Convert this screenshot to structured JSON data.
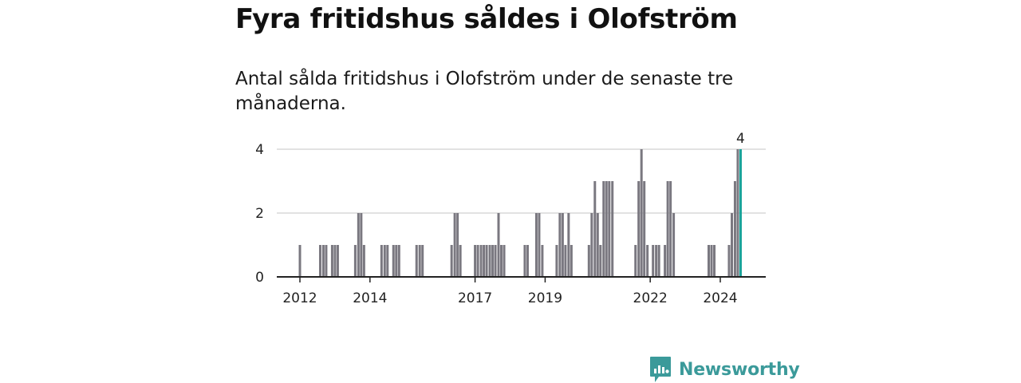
{
  "title": "Fyra fritidshus såldes i Olofström",
  "subtitle": "Antal sålda fritidshus i Olofström under de senaste tre månaderna.",
  "brand": {
    "name": "Newsworthy",
    "icon": "newsworthy-logo-icon"
  },
  "colors": {
    "bar": "#7a7880",
    "highlight": "#1aa39a",
    "grid": "#d9d9d9",
    "axis": "#222222"
  },
  "chart_data": {
    "type": "bar",
    "title": "Fyra fritidshus såldes i Olofström",
    "subtitle": "Antal sålda fritidshus i Olofström under de senaste tre månaderna.",
    "xlabel": "",
    "ylabel": "",
    "ylim": [
      0,
      4
    ],
    "yticks": [
      0,
      2,
      4
    ],
    "grid": true,
    "xlim": [
      2011.6,
      2025.9
    ],
    "xticks": [
      2012,
      2014,
      2017,
      2019,
      2022,
      2024
    ],
    "series": [
      {
        "x": [
          2012.0,
          2012.58,
          2012.67,
          2012.75,
          2012.92,
          2013.0,
          2013.08
        ],
        "values": [
          1,
          1,
          1,
          1,
          1,
          1,
          1
        ]
      },
      {
        "x": [
          2013.58,
          2013.67,
          2013.75,
          2013.83,
          2014.33,
          2014.42,
          2014.5,
          2014.67,
          2014.75,
          2014.83,
          2015.33,
          2015.42,
          2015.5
        ],
        "values": [
          1,
          2,
          2,
          1,
          1,
          1,
          1,
          1,
          1,
          1,
          1,
          1,
          1
        ]
      },
      {
        "x": [
          2016.33,
          2016.42,
          2016.5,
          2016.58,
          2017.0,
          2017.08,
          2017.17,
          2017.25,
          2017.33,
          2017.42,
          2017.5,
          2017.58,
          2017.67,
          2017.75,
          2017.83
        ],
        "values": [
          1,
          2,
          2,
          1,
          1,
          1,
          1,
          1,
          1,
          1,
          1,
          1,
          2,
          1,
          1
        ]
      },
      {
        "x": [
          2018.42,
          2018.5,
          2018.75,
          2018.83,
          2018.92,
          2019.33,
          2019.42,
          2019.5,
          2019.58,
          2019.67,
          2019.75,
          2020.25,
          2020.33,
          2020.42,
          2020.5,
          2020.58,
          2020.67,
          2020.75,
          2020.83,
          2020.92
        ],
        "values": [
          1,
          1,
          2,
          2,
          1,
          1,
          2,
          2,
          1,
          2,
          1,
          1,
          2,
          3,
          2,
          1,
          3,
          3,
          3,
          3
        ]
      },
      {
        "x": [
          2021.58,
          2021.67,
          2021.75,
          2021.83,
          2021.92,
          2022.08,
          2022.17,
          2022.25,
          2022.42,
          2022.5,
          2022.58,
          2022.67
        ],
        "values": [
          1,
          3,
          4,
          3,
          1,
          1,
          1,
          1,
          1,
          3,
          3,
          2
        ]
      },
      {
        "x": [
          2023.67,
          2023.75,
          2023.83,
          2024.25,
          2024.33,
          2024.42,
          2024.5
        ],
        "values": [
          1,
          1,
          1,
          1,
          2,
          3,
          4
        ]
      }
    ],
    "highlight": {
      "x": 2024.58,
      "value": 4,
      "label": "4"
    }
  }
}
